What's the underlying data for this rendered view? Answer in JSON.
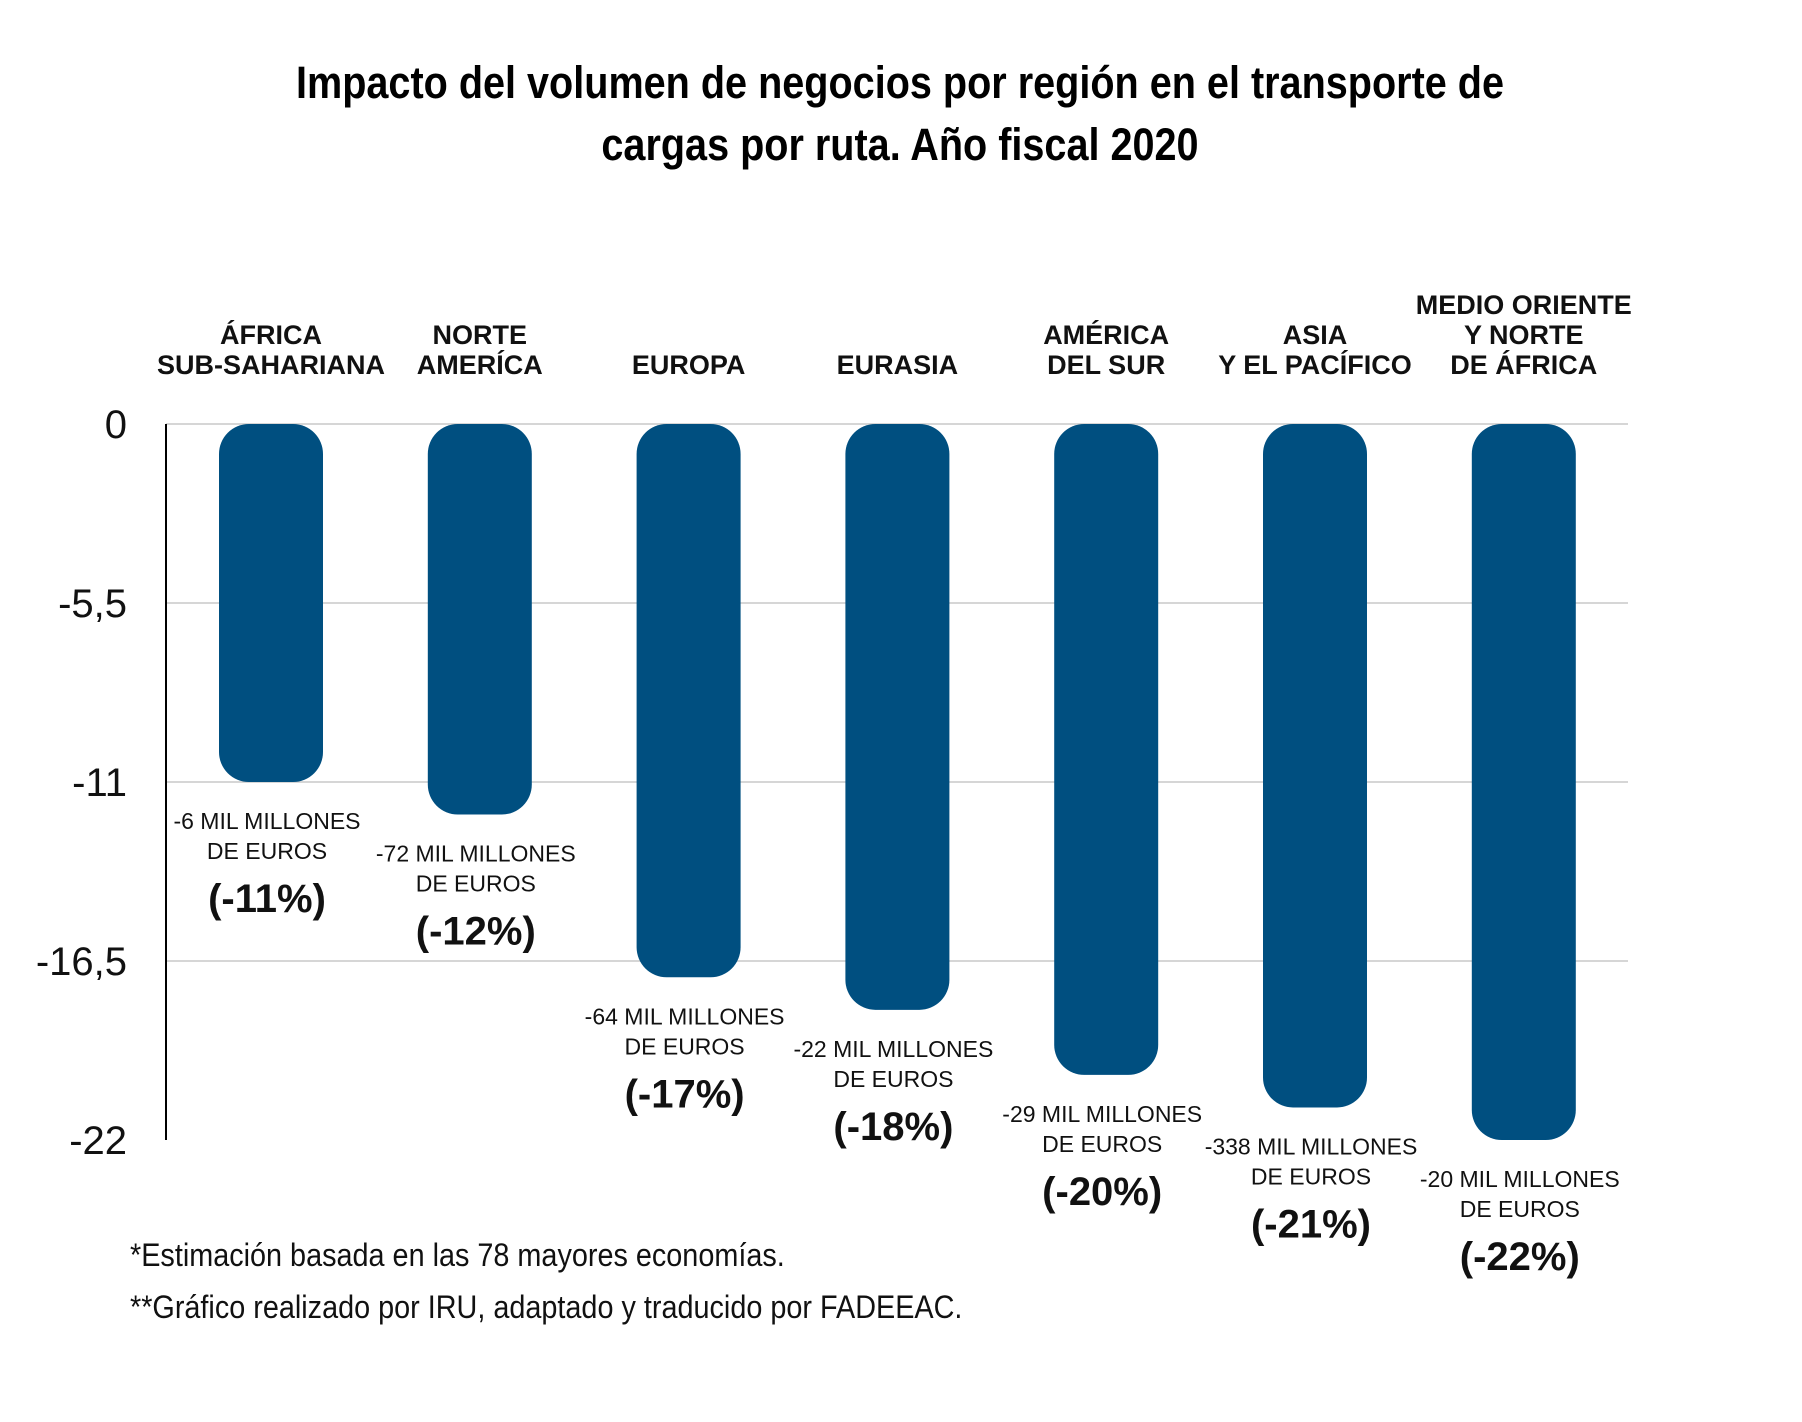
{
  "title": "Impacto del volumen de negocios por región en el transporte de cargas por ruta. Año fiscal 2020",
  "footnotes": [
    "*Estimación basada en las 78 mayores economías.",
    "**Gráfico realizado por IRU, adaptado y traducido por FADEEAC."
  ],
  "colors": {
    "bar": "#004f80",
    "grid": "#c8c8c8",
    "axis": "#000000",
    "text": "#111111"
  },
  "chart_data": {
    "type": "bar",
    "orientation": "vertical-downward",
    "title": "Impacto del volumen de negocios por región en el transporte de cargas por ruta. Año fiscal 2020",
    "categories": [
      [
        "ÁFRICA",
        "SUB-SAHARIANA"
      ],
      [
        "NORTE",
        "AMERÍCA"
      ],
      [
        "EUROPA"
      ],
      [
        "EURASIA"
      ],
      [
        "AMÉRICA",
        "DEL SUR"
      ],
      [
        "ASIA",
        "Y EL PACÍFICO"
      ],
      [
        "MEDIO ORIENTE",
        "Y NORTE",
        "DE ÁFRICA"
      ]
    ],
    "values": [
      -11,
      -12,
      -17,
      -18,
      -20,
      -21,
      -22
    ],
    "amount_labels": [
      [
        "-6 MIL MILLONES",
        "DE EUROS"
      ],
      [
        "-72 MIL MILLONES",
        "DE EUROS"
      ],
      [
        "-64 MIL MILLONES",
        "DE EUROS"
      ],
      [
        "-22 MIL MILLONES",
        "DE EUROS"
      ],
      [
        "-29 MIL MILLONES",
        "DE EUROS"
      ],
      [
        "-338 MIL MILLONES",
        "DE EUROS"
      ],
      [
        "-20 MIL MILLONES",
        "DE EUROS"
      ]
    ],
    "percent_labels": [
      "(-11%)",
      "(-12%)",
      "(-17%)",
      "(-18%)",
      "(-20%)",
      "(-21%)",
      "(-22%)"
    ],
    "yticks": [
      0,
      -5.5,
      -11,
      -16.5,
      -22
    ],
    "ytick_labels": [
      "0",
      "-5,5",
      "-11",
      "-16,5",
      "-22"
    ],
    "ylim": [
      -22,
      0
    ],
    "grid": true,
    "legend": "none"
  }
}
